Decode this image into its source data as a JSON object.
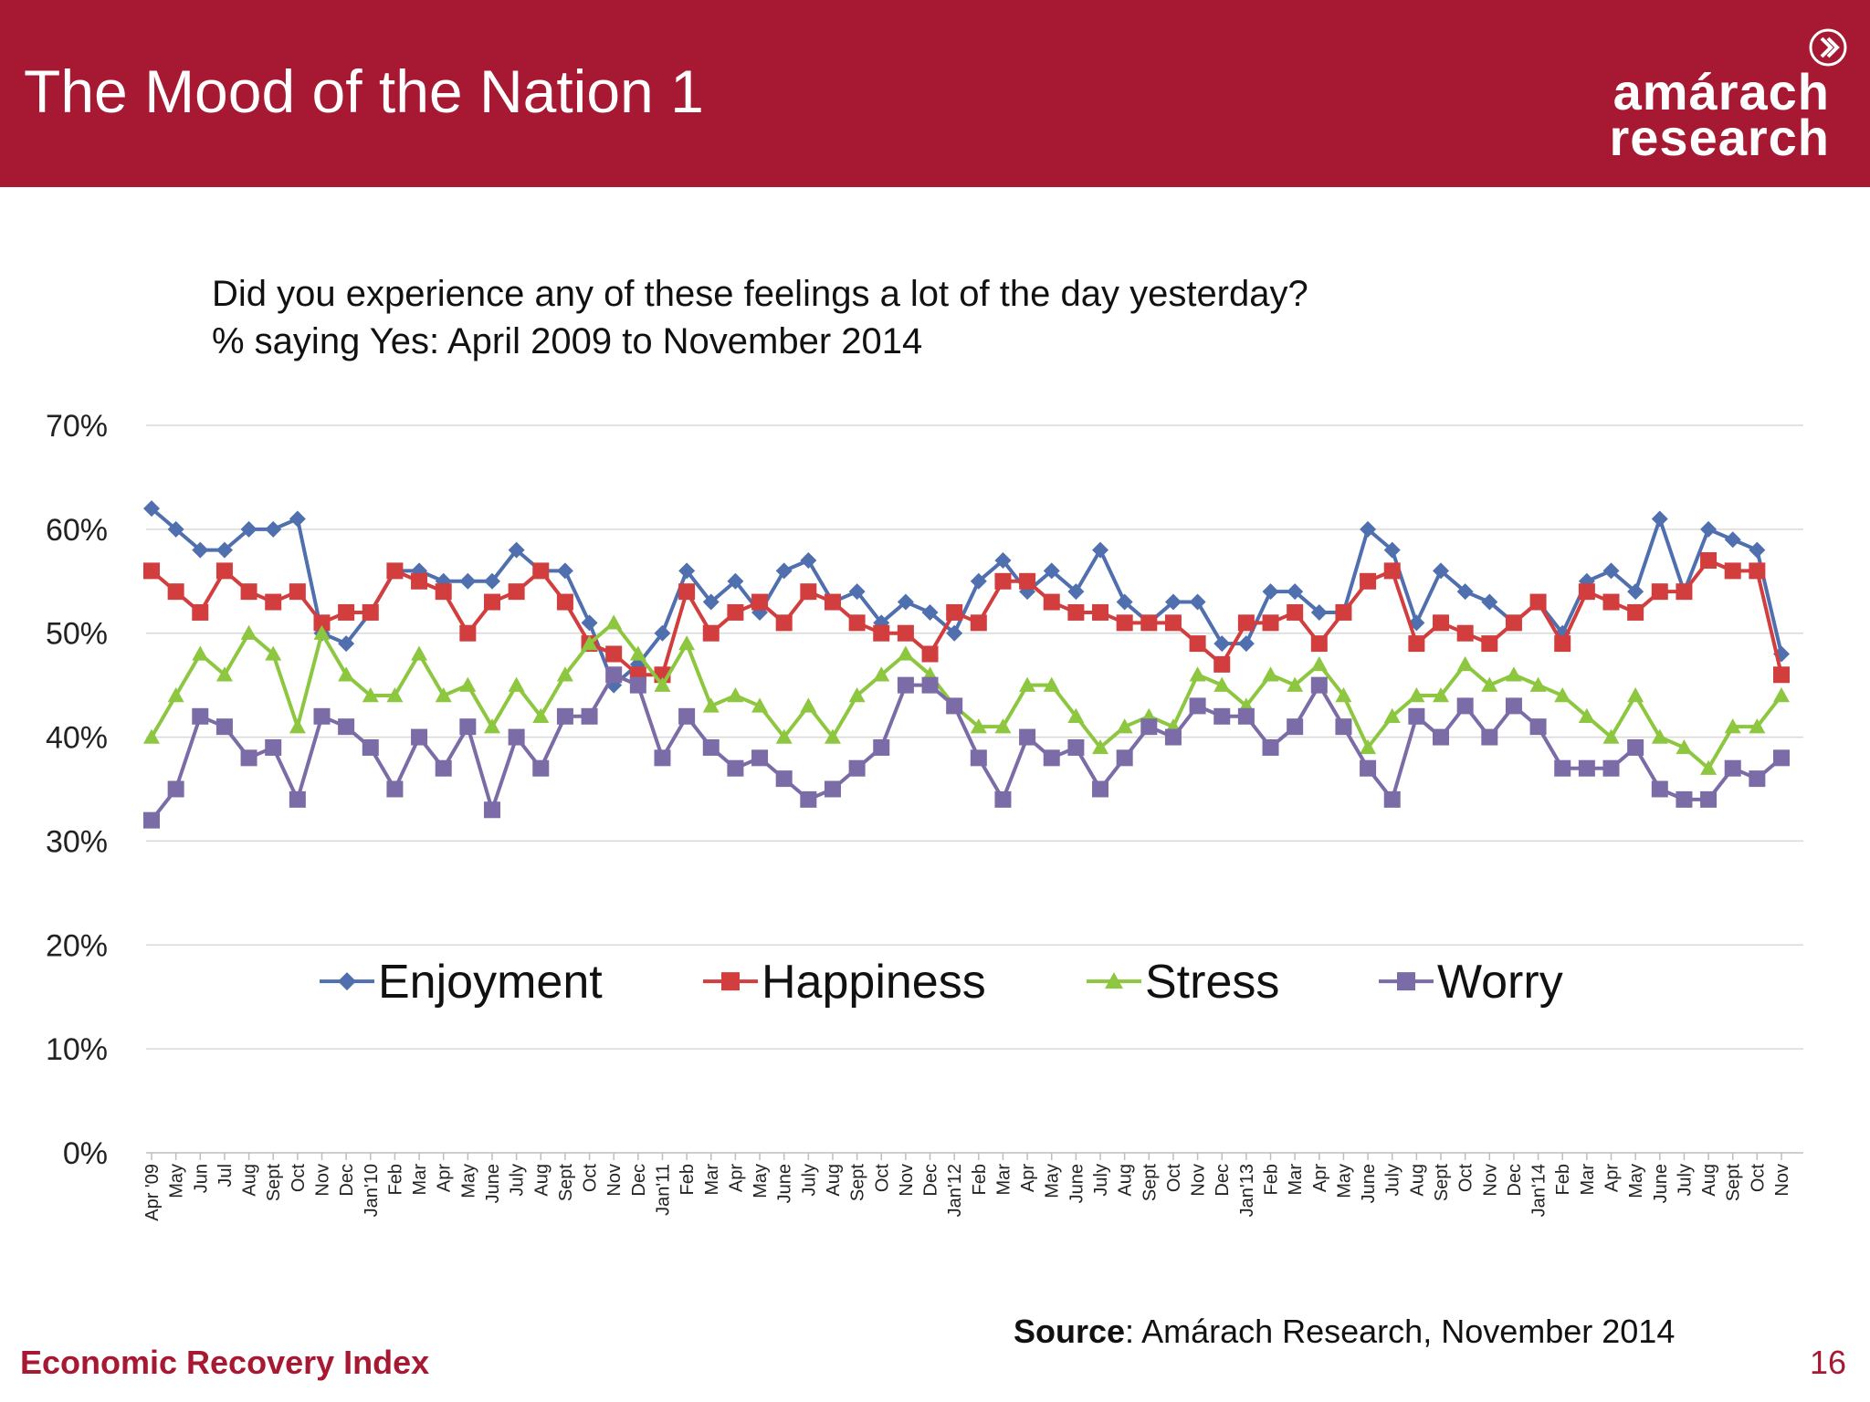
{
  "header": {
    "title": "The Mood of the Nation 1",
    "logo_line1": "amárach",
    "logo_line2": "research",
    "bg_color": "#a71832"
  },
  "question": {
    "line1": "Did you experience any of these feelings a lot of the day yesterday?",
    "line2": "% saying Yes: April 2009 to November 2014"
  },
  "chart_data": {
    "type": "line",
    "title": "",
    "xlabel": "",
    "ylabel": "",
    "ylim": [
      0,
      70
    ],
    "yticks": [
      "0%",
      "10%",
      "20%",
      "30%",
      "40%",
      "50%",
      "60%",
      "70%"
    ],
    "grid": true,
    "legend_position": "inside-bottom",
    "categories": [
      "Apr '09",
      "May",
      "Jun",
      "Jul",
      "Aug",
      "Sept",
      "Oct",
      "Nov",
      "Dec",
      "Jan'10",
      "Feb",
      "Mar",
      "Apr",
      "May",
      "June",
      "July",
      "Aug",
      "Sept",
      "Oct",
      "Nov",
      "Dec",
      "Jan'11",
      "Feb",
      "Mar",
      "Apr",
      "May",
      "June",
      "July",
      "Aug",
      "Sept",
      "Oct",
      "Nov",
      "Dec",
      "Jan'12",
      "Feb",
      "Mar",
      "Apr",
      "May",
      "June",
      "July",
      "Aug",
      "Sept",
      "Oct",
      "Nov",
      "Dec",
      "Jan'13",
      "Feb",
      "Mar",
      "Apr",
      "May",
      "June",
      "July",
      "Aug",
      "Sept",
      "Oct",
      "Nov",
      "Dec",
      "Jan'14",
      "Feb",
      "Mar",
      "Apr",
      "May",
      "June",
      "July",
      "Aug",
      "Sept",
      "Oct",
      "Nov"
    ],
    "series": [
      {
        "name": "Enjoyment",
        "color": "#4f6fae",
        "marker": "diamond",
        "values": [
          62,
          60,
          58,
          58,
          60,
          60,
          61,
          50,
          49,
          52,
          56,
          56,
          55,
          55,
          55,
          58,
          56,
          56,
          51,
          45,
          47,
          50,
          56,
          53,
          55,
          52,
          56,
          57,
          53,
          54,
          51,
          53,
          52,
          50,
          55,
          57,
          54,
          56,
          54,
          58,
          53,
          51,
          53,
          53,
          49,
          49,
          54,
          54,
          52,
          52,
          60,
          58,
          51,
          56,
          54,
          53,
          51,
          53,
          50,
          55,
          56,
          54,
          61,
          54,
          60,
          59,
          58,
          48
        ]
      },
      {
        "name": "Happiness",
        "color": "#d23d3d",
        "marker": "square",
        "values": [
          56,
          54,
          52,
          56,
          54,
          53,
          54,
          51,
          52,
          52,
          56,
          55,
          54,
          50,
          53,
          54,
          56,
          53,
          49,
          48,
          46,
          46,
          54,
          50,
          52,
          53,
          51,
          54,
          53,
          51,
          50,
          50,
          48,
          52,
          51,
          55,
          55,
          53,
          52,
          52,
          51,
          51,
          51,
          49,
          47,
          51,
          51,
          52,
          49,
          52,
          55,
          56,
          49,
          51,
          50,
          49,
          51,
          53,
          49,
          54,
          53,
          52,
          54,
          54,
          57,
          56,
          56,
          46
        ]
      },
      {
        "name": "Stress",
        "color": "#8dc63f",
        "marker": "triangle",
        "values": [
          40,
          44,
          48,
          46,
          50,
          48,
          41,
          50,
          46,
          44,
          44,
          48,
          44,
          45,
          41,
          45,
          42,
          46,
          49,
          51,
          48,
          45,
          49,
          43,
          44,
          43,
          40,
          43,
          40,
          44,
          46,
          48,
          46,
          43,
          41,
          41,
          45,
          45,
          42,
          39,
          41,
          42,
          41,
          46,
          45,
          43,
          46,
          45,
          47,
          44,
          39,
          42,
          44,
          44,
          47,
          45,
          46,
          45,
          44,
          42,
          40,
          44,
          40,
          39,
          37,
          41,
          41,
          44
        ]
      },
      {
        "name": "Worry",
        "color": "#7b6ba6",
        "marker": "square",
        "values": [
          32,
          35,
          42,
          41,
          38,
          39,
          34,
          42,
          41,
          39,
          35,
          40,
          37,
          41,
          33,
          40,
          37,
          42,
          42,
          46,
          45,
          38,
          42,
          39,
          37,
          38,
          36,
          34,
          35,
          37,
          39,
          45,
          45,
          43,
          38,
          34,
          40,
          38,
          39,
          35,
          38,
          41,
          40,
          43,
          42,
          42,
          39,
          41,
          45,
          41,
          37,
          34,
          42,
          40,
          43,
          40,
          43,
          41,
          37,
          37,
          37,
          39,
          35,
          34,
          34,
          37,
          36,
          38
        ]
      }
    ]
  },
  "source": {
    "label": "Source",
    "text": ": Amárach Research, November 2014"
  },
  "footer": {
    "left": "Economic Recovery Index",
    "page": "16"
  }
}
